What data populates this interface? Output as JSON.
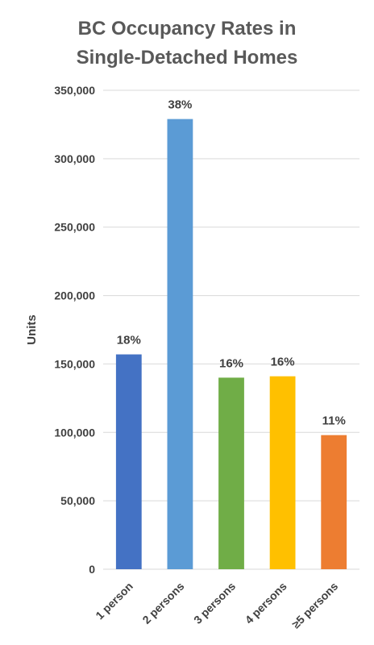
{
  "chart_data": {
    "type": "bar",
    "title": [
      "BC Occupancy Rates in",
      "Single-Detached Homes"
    ],
    "xlabel": "",
    "ylabel": "Units",
    "categories": [
      "1 person",
      "2 persons",
      "3 persons",
      "4 persons",
      "≥5 persons"
    ],
    "values": [
      157000,
      329000,
      140000,
      141000,
      98000
    ],
    "data_labels": [
      "18%",
      "38%",
      "16%",
      "16%",
      "11%"
    ],
    "colors": [
      "#4472c4",
      "#5b9bd5",
      "#70ad47",
      "#ffc000",
      "#ed7d31"
    ],
    "ylim": [
      0,
      350000
    ],
    "yticks": [
      0,
      50000,
      100000,
      150000,
      200000,
      250000,
      300000,
      350000
    ],
    "ytick_labels": [
      "0",
      "50,000",
      "100,000",
      "150,000",
      "200,000",
      "250,000",
      "300,000",
      "350,000"
    ],
    "grid": true,
    "legend": false
  }
}
